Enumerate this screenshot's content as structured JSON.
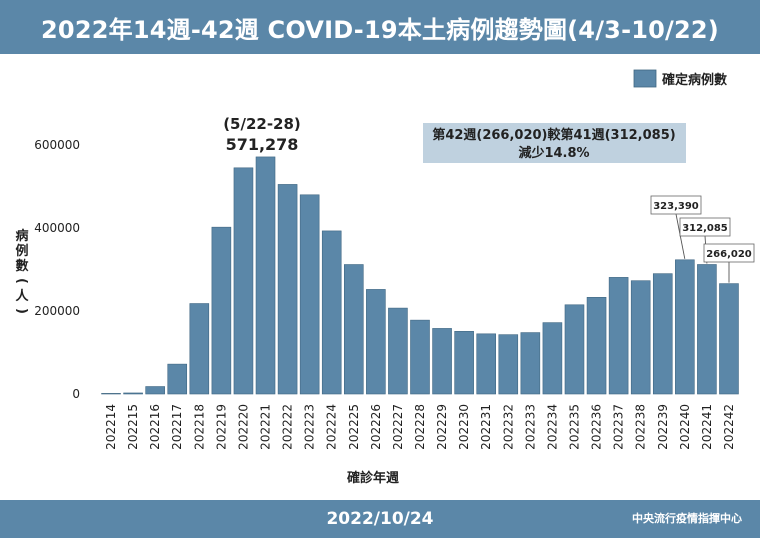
{
  "header": {
    "title": "2022年14週-42週 COVID-19本土病例趨勢圖(4/3-10/22)"
  },
  "footer": {
    "date": "2022/10/24",
    "org": "中央流行疫情指揮中心"
  },
  "colors": {
    "bar": "#5b87a8",
    "bar_edge": "#3f6682",
    "header": "#5b87a8",
    "annotation_box": "#bfd1df"
  },
  "chart_data": {
    "type": "bar",
    "title": "",
    "xlabel": "確診年週",
    "ylabel": "病例數(人)",
    "ylim": [
      0,
      700000
    ],
    "yticks": [
      0,
      200000,
      400000,
      600000
    ],
    "ytick_labels": [
      "0",
      "200000",
      "400000",
      "600000"
    ],
    "legend": {
      "position": "top-right",
      "entries": [
        "確定病例數"
      ]
    },
    "grid": false,
    "categories": [
      "202214",
      "202215",
      "202216",
      "202217",
      "202218",
      "202219",
      "202220",
      "202221",
      "202222",
      "202223",
      "202224",
      "202225",
      "202226",
      "202227",
      "202228",
      "202229",
      "202230",
      "202231",
      "202232",
      "202233",
      "202234",
      "202235",
      "202236",
      "202237",
      "202238",
      "202239",
      "202240",
      "202241",
      "202242"
    ],
    "series": [
      {
        "name": "確定病例數",
        "values": [
          300,
          2500,
          18000,
          72000,
          218000,
          402000,
          545000,
          571278,
          505000,
          480000,
          393000,
          312000,
          252000,
          207000,
          178000,
          158000,
          151000,
          145000,
          143000,
          148000,
          172000,
          215000,
          233000,
          281000,
          273000,
          290000,
          323390,
          312085,
          266020
        ]
      }
    ],
    "annotations": {
      "peak": {
        "range": "(5/22-28)",
        "value": "571,278"
      },
      "comparison": {
        "line1": "第42週(266,020)較第41週(312,085)",
        "line2": "減少14.8%"
      },
      "callouts": [
        "323,390",
        "312,085",
        "266,020"
      ]
    }
  }
}
